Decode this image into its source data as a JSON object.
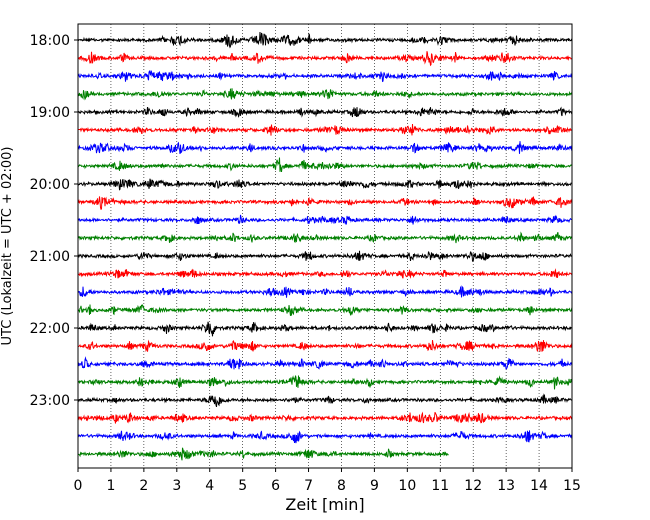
{
  "chart_data": {
    "type": "line",
    "title": "",
    "xlabel": "Zeit  [min]",
    "ylabel": "UTC (Lokalzeit = UTC + 02:00)",
    "xlim": [
      0,
      15
    ],
    "x_ticks": [
      "0",
      "1",
      "2",
      "3",
      "4",
      "5",
      "6",
      "7",
      "8",
      "9",
      "10",
      "11",
      "12",
      "13",
      "14",
      "15"
    ],
    "y_tick_labels": [
      "18:00",
      "19:00",
      "20:00",
      "21:00",
      "22:00",
      "23:00"
    ],
    "grid": "vertical dotted",
    "trace_interval_min": 15,
    "trace_colors_cycle": [
      "#000000",
      "#ff0000",
      "#0000ff",
      "#008000"
    ],
    "traces": [
      {
        "start": "18:00",
        "duration_min": 15
      },
      {
        "start": "18:15",
        "duration_min": 15
      },
      {
        "start": "18:30",
        "duration_min": 15
      },
      {
        "start": "18:45",
        "duration_min": 15
      },
      {
        "start": "19:00",
        "duration_min": 15
      },
      {
        "start": "19:15",
        "duration_min": 15
      },
      {
        "start": "19:30",
        "duration_min": 15
      },
      {
        "start": "19:45",
        "duration_min": 15
      },
      {
        "start": "20:00",
        "duration_min": 15
      },
      {
        "start": "20:15",
        "duration_min": 15
      },
      {
        "start": "20:30",
        "duration_min": 15
      },
      {
        "start": "20:45",
        "duration_min": 15
      },
      {
        "start": "21:00",
        "duration_min": 15
      },
      {
        "start": "21:15",
        "duration_min": 15
      },
      {
        "start": "21:30",
        "duration_min": 15
      },
      {
        "start": "21:45",
        "duration_min": 15
      },
      {
        "start": "22:00",
        "duration_min": 15
      },
      {
        "start": "22:15",
        "duration_min": 15
      },
      {
        "start": "22:30",
        "duration_min": 15
      },
      {
        "start": "22:45",
        "duration_min": 15
      },
      {
        "start": "23:00",
        "duration_min": 15
      },
      {
        "start": "23:15",
        "duration_min": 15
      },
      {
        "start": "23:30",
        "duration_min": 15
      },
      {
        "start": "23:45",
        "duration_min": 11.25
      }
    ]
  }
}
